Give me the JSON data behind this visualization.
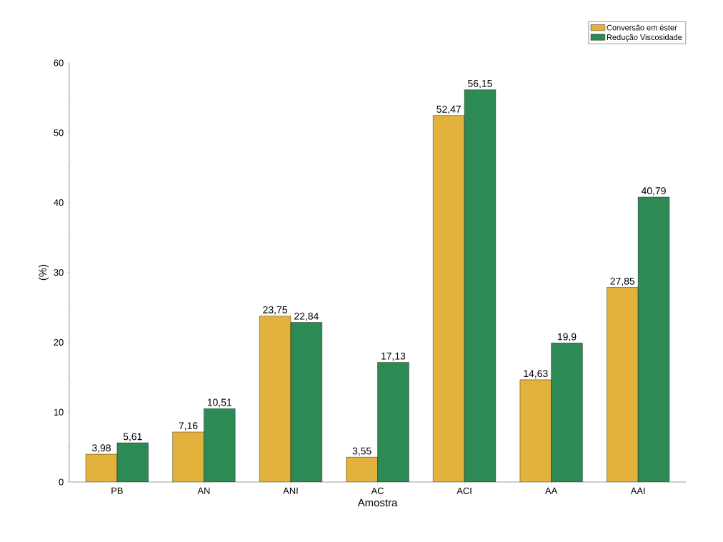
{
  "chart_data": {
    "type": "bar",
    "xlabel": "Amostra",
    "ylabel": "(%)",
    "categories": [
      "PB",
      "AN",
      "ANI",
      "AC",
      "ACI",
      "AA",
      "AAI"
    ],
    "series": [
      {
        "name": "Conversão em éster",
        "color": "#e3b23c",
        "values": [
          3.98,
          7.16,
          23.75,
          3.55,
          52.47,
          14.63,
          27.85
        ],
        "value_labels": [
          "3,98",
          "7,16",
          "23,75",
          "3,55",
          "52,47",
          "14,63",
          "27,85"
        ]
      },
      {
        "name": "Redução Viscosidade",
        "color": "#2e8a55",
        "values": [
          5.61,
          10.51,
          22.84,
          17.13,
          56.15,
          19.9,
          40.79
        ],
        "value_labels": [
          "5,61",
          "10,51",
          "22,84",
          "17,13",
          "56,15",
          "19,9",
          "40,79"
        ]
      }
    ],
    "ylim": [
      0,
      60
    ],
    "yticks": [
      0,
      10,
      20,
      30,
      40,
      50,
      60
    ],
    "grid": false,
    "legend": "top right"
  }
}
